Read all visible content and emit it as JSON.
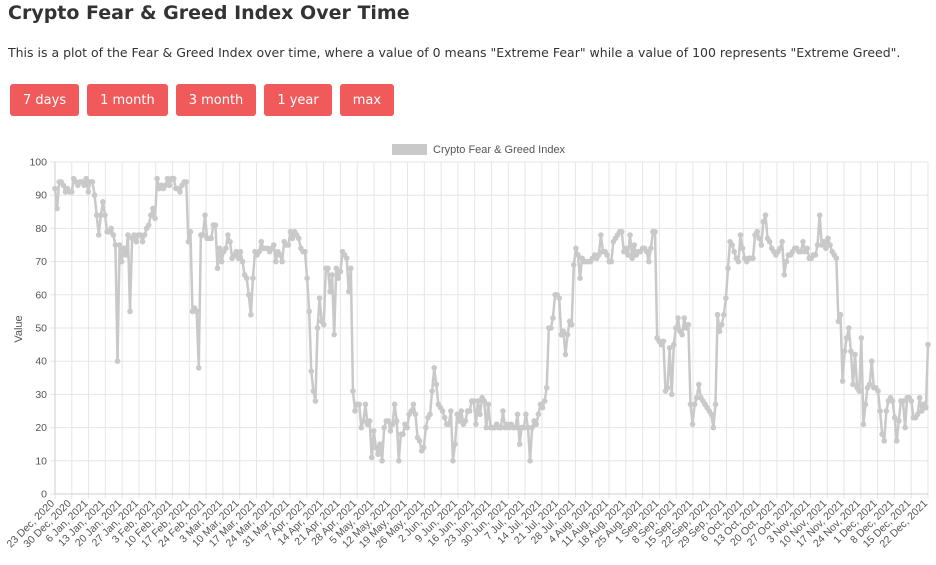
{
  "page": {
    "title": "Crypto Fear & Greed Index Over Time",
    "description": "This is a plot of the Fear & Greed Index over time, where a value of 0 means \"Extreme Fear\" while a value of 100 represents \"Extreme Greed\"."
  },
  "range_buttons": [
    "7 days",
    "1 month",
    "3 month",
    "1 year",
    "max"
  ],
  "colors": {
    "button": "#f15a5a",
    "line": "#c9c9c9",
    "grid": "#e6e6e6"
  },
  "chart_data": {
    "type": "line",
    "title": "",
    "legend": {
      "position": "top",
      "entries": [
        "Crypto Fear & Greed Index"
      ]
    },
    "xlabel": "",
    "ylabel": "Value",
    "ylim": [
      0,
      100
    ],
    "yticks": [
      0,
      10,
      20,
      30,
      40,
      50,
      60,
      70,
      80,
      90,
      100
    ],
    "grid": true,
    "x_tick_labels": [
      "23 Dec, 2020",
      "30 Dec, 2020",
      "6 Jan, 2021",
      "13 Jan, 2021",
      "20 Jan, 2021",
      "27 Jan, 2021",
      "3 Feb, 2021",
      "10 Feb, 2021",
      "17 Feb, 2021",
      "24 Feb, 2021",
      "3 Mar, 2021",
      "10 Mar, 2021",
      "17 Mar, 2021",
      "24 Mar, 2021",
      "31 Mar, 2021",
      "7 Apr, 2021",
      "14 Apr, 2021",
      "21 Apr, 2021",
      "28 Apr, 2021",
      "5 May, 2021",
      "12 May, 2021",
      "19 May, 2021",
      "26 May, 2021",
      "2 Jun, 2021",
      "9 Jun, 2021",
      "16 Jun, 2021",
      "23 Jun, 2021",
      "30 Jun, 2021",
      "7 Jul, 2021",
      "14 Jul, 2021",
      "21 Jul, 2021",
      "28 Jul, 2021",
      "4 Aug, 2021",
      "11 Aug, 2021",
      "18 Aug, 2021",
      "25 Aug, 2021",
      "1 Sep, 2021",
      "8 Sep, 2021",
      "15 Sep, 2021",
      "22 Sep, 2021",
      "29 Sep, 2021",
      "6 Oct, 2021",
      "13 Oct, 2021",
      "20 Oct, 2021",
      "27 Oct, 2021",
      "3 Nov, 2021",
      "10 Nov, 2021",
      "17 Nov, 2021",
      "24 Nov, 2021",
      "1 Dec, 2021",
      "8 Dec, 2021",
      "15 Dec, 2021",
      "22 Dec, 2021"
    ],
    "series": [
      {
        "name": "Crypto Fear & Greed Index",
        "values": [
          92,
          86,
          94,
          94,
          93,
          91,
          92,
          91,
          91,
          95,
          94,
          93,
          94,
          94,
          93,
          95,
          91,
          94,
          94,
          90,
          84,
          78,
          84,
          88,
          84,
          79,
          79,
          80,
          78,
          75,
          40,
          75,
          70,
          74,
          72,
          78,
          55,
          77,
          78,
          76,
          78,
          78,
          76,
          78,
          80,
          81,
          84,
          86,
          83,
          95,
          92,
          93,
          92,
          93,
          95,
          93,
          95,
          95,
          92,
          92,
          91,
          93,
          94,
          94,
          76,
          79,
          55,
          56,
          55,
          38,
          78,
          78,
          84,
          77,
          77,
          77,
          81,
          81,
          68,
          74,
          70,
          73,
          74,
          78,
          76,
          71,
          72,
          73,
          71,
          73,
          70,
          66,
          65,
          60,
          54,
          65,
          73,
          72,
          73,
          76,
          74,
          74,
          74,
          73,
          74,
          75,
          70,
          73,
          72,
          70,
          76,
          75,
          75,
          79,
          77,
          79,
          78,
          77,
          74,
          73,
          73,
          65,
          55,
          37,
          31,
          28,
          50,
          59,
          52,
          51,
          68,
          68,
          61,
          66,
          48,
          68,
          65,
          67,
          73,
          72,
          71,
          61,
          68,
          31,
          25,
          27,
          27,
          20,
          22,
          27,
          21,
          22,
          11,
          19,
          14,
          12,
          15,
          10,
          20,
          22,
          22,
          19,
          21,
          27,
          22,
          10,
          18,
          18,
          21,
          20,
          24,
          25,
          27,
          24,
          17,
          16,
          13,
          14,
          20,
          23,
          24,
          31,
          38,
          33,
          27,
          26,
          25,
          23,
          21,
          21,
          25,
          10,
          15,
          24,
          22,
          25,
          21,
          22,
          25,
          25,
          28,
          28,
          21,
          28,
          24,
          29,
          28,
          20,
          27,
          20,
          20,
          20,
          21,
          20,
          20,
          25,
          20,
          21,
          20,
          21,
          20,
          20,
          24,
          15,
          20,
          20,
          24,
          20,
          10,
          20,
          22,
          21,
          24,
          27,
          26,
          28,
          32,
          50,
          50,
          53,
          60,
          60,
          59,
          48,
          49,
          42,
          48,
          52,
          51,
          69,
          74,
          72,
          65,
          71,
          70,
          70,
          70,
          70,
          71,
          72,
          71,
          72,
          78,
          73,
          73,
          72,
          70,
          70,
          76,
          77,
          78,
          79,
          79,
          73,
          74,
          72,
          78,
          71,
          75,
          72,
          73,
          73,
          74,
          74,
          73,
          70,
          74,
          79,
          79,
          47,
          46,
          45,
          46,
          31,
          32,
          44,
          30,
          45,
          50,
          53,
          49,
          48,
          53,
          50,
          51,
          27,
          21,
          27,
          29,
          33,
          29,
          28,
          27,
          26,
          25,
          24,
          20,
          27,
          54,
          49,
          51,
          54,
          59,
          68,
          76,
          75,
          73,
          71,
          70,
          78,
          74,
          71,
          70,
          71,
          71,
          71,
          78,
          79,
          77,
          75,
          82,
          84,
          77,
          76,
          74,
          73,
          72,
          73,
          74,
          76,
          66,
          70,
          72,
          72,
          73,
          74,
          74,
          73,
          73,
          76,
          73,
          74,
          71,
          71,
          72,
          72,
          75,
          84,
          75,
          76,
          74,
          77,
          75,
          73,
          72,
          71,
          52,
          54,
          34,
          43,
          47,
          50,
          43,
          33,
          42,
          32,
          31,
          47,
          21,
          27,
          32,
          33,
          40,
          32,
          32,
          31,
          25,
          18,
          16,
          25,
          28,
          29,
          28,
          23,
          16,
          22,
          28,
          28,
          20,
          29,
          29,
          28,
          23,
          23,
          24,
          29,
          25,
          27,
          26,
          45
        ]
      }
    ]
  }
}
